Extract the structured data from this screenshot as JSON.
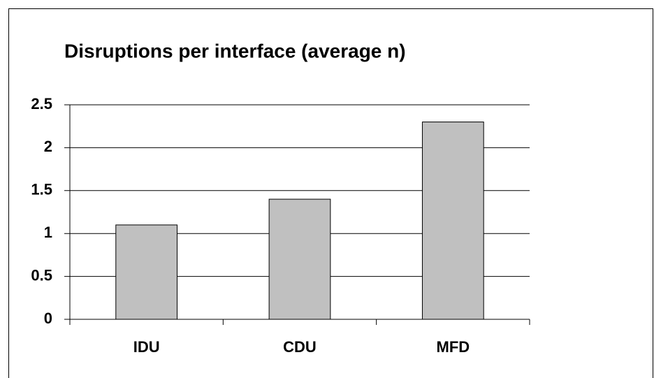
{
  "chart_data": {
    "type": "bar",
    "title": "Disruptions per interface (average n)",
    "categories": [
      "IDU",
      "CDU",
      "MFD"
    ],
    "values": [
      1.1,
      1.4,
      2.3
    ],
    "color": "#c0c0c0",
    "ylim": [
      0,
      2.5
    ],
    "yticks": [
      0,
      0.5,
      1,
      1.5,
      2,
      2.5
    ],
    "grid": true
  }
}
